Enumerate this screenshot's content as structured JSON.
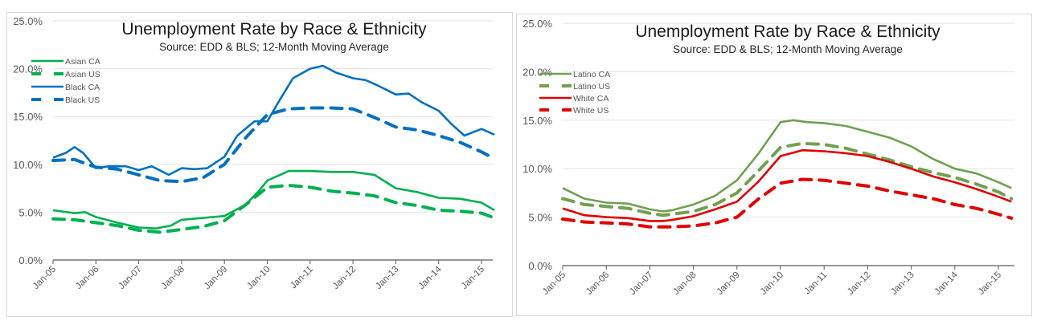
{
  "chart_data": [
    {
      "type": "line",
      "title": "Unemployment  Rate by Race & Ethnicity",
      "subtitle": "Source:  EDD & BLS; 12-Month Moving Average",
      "xlabel": "",
      "ylabel": "",
      "ylim": [
        0,
        25
      ],
      "yticks": [
        "0.0%",
        "5.0%",
        "10.0%",
        "15.0%",
        "20.0%",
        "25.0%"
      ],
      "xticks": [
        "Jan-05",
        "Jan-06",
        "Jan-07",
        "Jan-08",
        "Jan-09",
        "Jan-10",
        "Jan-11",
        "Jan-12",
        "Jan-13",
        "Jan-14",
        "Jan-15"
      ],
      "x_unit": "years since Jan-05",
      "xlim": [
        0,
        10.3
      ],
      "grid": true,
      "legend_position": "top-left",
      "series": [
        {
          "name": "Asian CA",
          "color": "#00b050",
          "dash": "solid",
          "x": [
            0,
            0.5,
            0.75,
            1,
            1.5,
            2,
            2.4,
            2.75,
            3,
            3.5,
            4,
            4.5,
            4.8,
            5,
            5.5,
            6,
            6.5,
            7,
            7.5,
            8,
            8.5,
            9,
            9.5,
            10,
            10.3
          ],
          "y": [
            5.2,
            4.9,
            5.0,
            4.5,
            3.9,
            3.4,
            3.3,
            3.6,
            4.2,
            4.4,
            4.6,
            5.8,
            7.2,
            8.3,
            9.3,
            9.3,
            9.2,
            9.2,
            8.9,
            7.5,
            7.1,
            6.5,
            6.4,
            6.0,
            5.2
          ]
        },
        {
          "name": "Asian US",
          "color": "#00b050",
          "dash": "dashed",
          "x": [
            0,
            0.5,
            1,
            1.5,
            2,
            2.5,
            3,
            3.5,
            4,
            4.5,
            5,
            5.5,
            6,
            6.5,
            7,
            7.5,
            8,
            8.5,
            9,
            9.5,
            10,
            10.3
          ],
          "y": [
            4.3,
            4.2,
            3.9,
            3.6,
            3.1,
            2.9,
            3.2,
            3.5,
            4.1,
            5.8,
            7.6,
            7.8,
            7.6,
            7.2,
            7.0,
            6.7,
            6.0,
            5.7,
            5.2,
            5.1,
            4.9,
            4.4
          ]
        },
        {
          "name": "Black CA",
          "color": "#0070c0",
          "dash": "solid",
          "x": [
            0,
            0.3,
            0.5,
            0.7,
            1,
            1.3,
            1.7,
            2,
            2.3,
            2.7,
            3,
            3.3,
            3.6,
            4,
            4.3,
            4.7,
            5,
            5.3,
            5.6,
            6,
            6.3,
            6.6,
            7,
            7.3,
            7.6,
            8,
            8.3,
            8.6,
            9,
            9.3,
            9.6,
            10,
            10.3
          ],
          "y": [
            10.7,
            11.2,
            11.8,
            11.2,
            9.6,
            9.8,
            9.8,
            9.4,
            9.8,
            8.9,
            9.6,
            9.5,
            9.6,
            10.8,
            13.0,
            14.5,
            14.5,
            16.8,
            19.0,
            20.0,
            20.3,
            19.6,
            19.0,
            18.8,
            18.2,
            17.3,
            17.4,
            16.5,
            15.6,
            14.2,
            13.0,
            13.7,
            13.1
          ]
        },
        {
          "name": "Black US",
          "color": "#0070c0",
          "dash": "dashed",
          "x": [
            0,
            0.5,
            1,
            1.5,
            2,
            2.5,
            3,
            3.5,
            4,
            4.5,
            5,
            5.5,
            6,
            6.5,
            7,
            7.5,
            8,
            8.5,
            9,
            9.5,
            10,
            10.3
          ],
          "y": [
            10.4,
            10.5,
            9.7,
            9.5,
            8.9,
            8.3,
            8.2,
            8.6,
            10.0,
            12.8,
            15.2,
            15.8,
            15.9,
            15.9,
            15.8,
            14.9,
            13.9,
            13.6,
            13.0,
            12.3,
            11.3,
            10.6
          ]
        }
      ]
    },
    {
      "type": "line",
      "title": "Unemployment  Rate by Race & Ethnicity",
      "subtitle": "Source:  EDD & BLS; 12-Month Moving Average",
      "xlabel": "",
      "ylabel": "",
      "ylim": [
        0,
        25
      ],
      "yticks": [
        "0.0%",
        "5.0%",
        "10.0%",
        "15.0%",
        "20.0%",
        "25.0%"
      ],
      "xticks": [
        "Jan-05",
        "Jan-06",
        "Jan-07",
        "Jan-08",
        "Jan-09",
        "Jan-10",
        "Jan-11",
        "Jan-12",
        "Jan-13",
        "Jan-14",
        "Jan-15"
      ],
      "x_unit": "years since Jan-05",
      "xlim": [
        0,
        10.3
      ],
      "grid": true,
      "legend_position": "top-left",
      "series": [
        {
          "name": "Latino CA",
          "color": "#70a050",
          "dash": "solid",
          "x": [
            0,
            0.5,
            1,
            1.5,
            2,
            2.3,
            2.5,
            3,
            3.5,
            4,
            4.5,
            5,
            5.3,
            5.6,
            6,
            6.5,
            7,
            7.5,
            8,
            8.5,
            9,
            9.5,
            10,
            10.3
          ],
          "y": [
            8.0,
            6.9,
            6.5,
            6.4,
            5.8,
            5.6,
            5.7,
            6.3,
            7.2,
            8.8,
            11.6,
            14.8,
            15.0,
            14.8,
            14.7,
            14.4,
            13.8,
            13.2,
            12.3,
            11.0,
            10.0,
            9.5,
            8.6,
            8.0
          ]
        },
        {
          "name": "Latino US",
          "color": "#70a050",
          "dash": "dashed",
          "x": [
            0,
            0.5,
            1,
            1.5,
            2,
            2.3,
            2.5,
            3,
            3.5,
            4,
            4.5,
            5,
            5.5,
            6,
            6.5,
            7,
            7.5,
            8,
            8.5,
            9,
            9.5,
            10,
            10.3
          ],
          "y": [
            6.9,
            6.3,
            6.1,
            5.9,
            5.4,
            5.2,
            5.3,
            5.6,
            6.3,
            7.5,
            9.8,
            12.2,
            12.6,
            12.5,
            12.1,
            11.5,
            10.9,
            10.2,
            9.6,
            9.1,
            8.4,
            7.6,
            6.9
          ]
        },
        {
          "name": "White CA",
          "color": "#e00000",
          "dash": "solid",
          "x": [
            0,
            0.5,
            1,
            1.5,
            2,
            2.3,
            2.5,
            3,
            3.5,
            4,
            4.5,
            5,
            5.5,
            6,
            6.5,
            7,
            7.5,
            8,
            8.5,
            9,
            9.5,
            10,
            10.3
          ],
          "y": [
            5.9,
            5.2,
            5.0,
            4.9,
            4.6,
            4.6,
            4.7,
            5.1,
            5.8,
            6.6,
            8.7,
            11.3,
            11.9,
            11.8,
            11.6,
            11.3,
            10.7,
            10.0,
            9.2,
            8.6,
            7.9,
            7.1,
            6.6
          ]
        },
        {
          "name": "White US",
          "color": "#e00000",
          "dash": "dashed",
          "x": [
            0,
            0.5,
            1,
            1.5,
            2,
            2.5,
            3,
            3.5,
            4,
            4.5,
            5,
            5.5,
            6,
            6.5,
            7,
            7.5,
            8,
            8.5,
            9,
            9.5,
            10,
            10.3
          ],
          "y": [
            4.8,
            4.5,
            4.4,
            4.3,
            4.0,
            4.0,
            4.1,
            4.4,
            5.0,
            6.9,
            8.5,
            8.9,
            8.8,
            8.5,
            8.2,
            7.7,
            7.3,
            6.9,
            6.3,
            5.9,
            5.3,
            4.9
          ]
        }
      ]
    }
  ]
}
